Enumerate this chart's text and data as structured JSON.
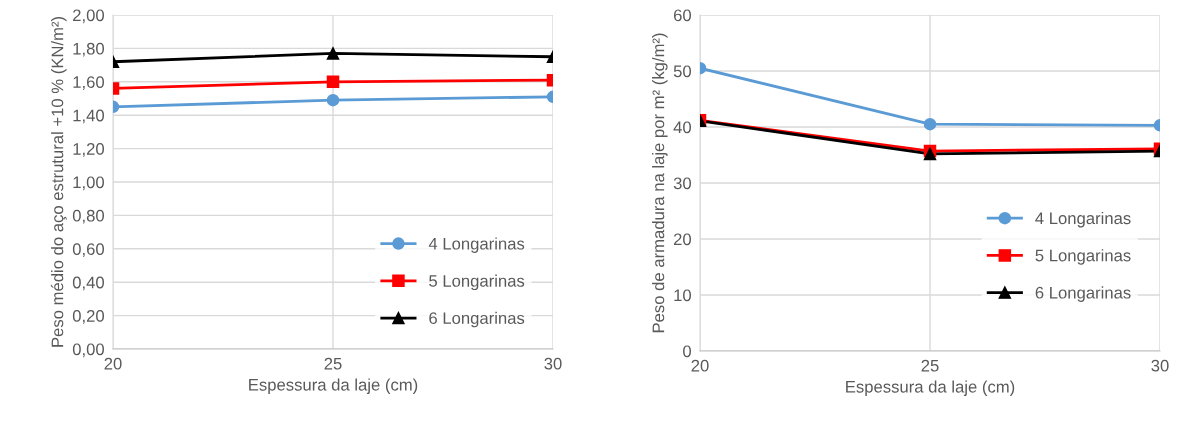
{
  "chart_data": [
    {
      "type": "line",
      "xlabel": "Espessura da laje (cm)",
      "ylabel": "Peso médio do aço estrutural +10 % (KN/m²)",
      "x": [
        20,
        25,
        30
      ],
      "xlim": [
        20,
        30
      ],
      "xticks": [
        20,
        25,
        30
      ],
      "ylim": [
        0,
        2
      ],
      "yticks": [
        {
          "value": 0,
          "label": "0,00"
        },
        {
          "value": 0.2,
          "label": "0,20"
        },
        {
          "value": 0.4,
          "label": "0,40"
        },
        {
          "value": 0.6,
          "label": "0,60"
        },
        {
          "value": 0.8,
          "label": "0,80"
        },
        {
          "value": 1.0,
          "label": "1,00"
        },
        {
          "value": 1.2,
          "label": "1,20"
        },
        {
          "value": 1.4,
          "label": "1,40"
        },
        {
          "value": 1.6,
          "label": "1,60"
        },
        {
          "value": 1.8,
          "label": "1,80"
        },
        {
          "value": 2.0,
          "label": "2,00"
        }
      ],
      "grid": true,
      "legend": "bottom right",
      "series": [
        {
          "name": "4 Longarinas",
          "color": "#5b9bd5",
          "marker": "circle",
          "values": [
            1.45,
            1.49,
            1.51
          ]
        },
        {
          "name": "5 Longarinas",
          "color": "#ff0000",
          "marker": "square",
          "values": [
            1.56,
            1.6,
            1.61
          ]
        },
        {
          "name": "6 Longarinas",
          "color": "#000000",
          "marker": "triangle",
          "values": [
            1.72,
            1.77,
            1.75
          ]
        }
      ]
    },
    {
      "type": "line",
      "xlabel": "Espessura da laje (cm)",
      "ylabel": "Peso de armadura na laje por m² (kg/m²)",
      "x": [
        20,
        25,
        30
      ],
      "xlim": [
        20,
        30
      ],
      "xticks": [
        20,
        25,
        30
      ],
      "ylim": [
        0,
        60
      ],
      "yticks": [
        0,
        10,
        20,
        30,
        40,
        50,
        60
      ],
      "grid": true,
      "legend": "right",
      "series": [
        {
          "name": "4 Longarinas",
          "color": "#5b9bd5",
          "marker": "circle",
          "values": [
            50.5,
            40.5,
            40.3
          ]
        },
        {
          "name": "5 Longarinas",
          "color": "#ff0000",
          "marker": "square",
          "values": [
            41.2,
            35.7,
            36.1
          ]
        },
        {
          "name": "6 Longarinas",
          "color": "#000000",
          "marker": "triangle",
          "values": [
            41.1,
            35.2,
            35.7
          ]
        }
      ]
    }
  ]
}
